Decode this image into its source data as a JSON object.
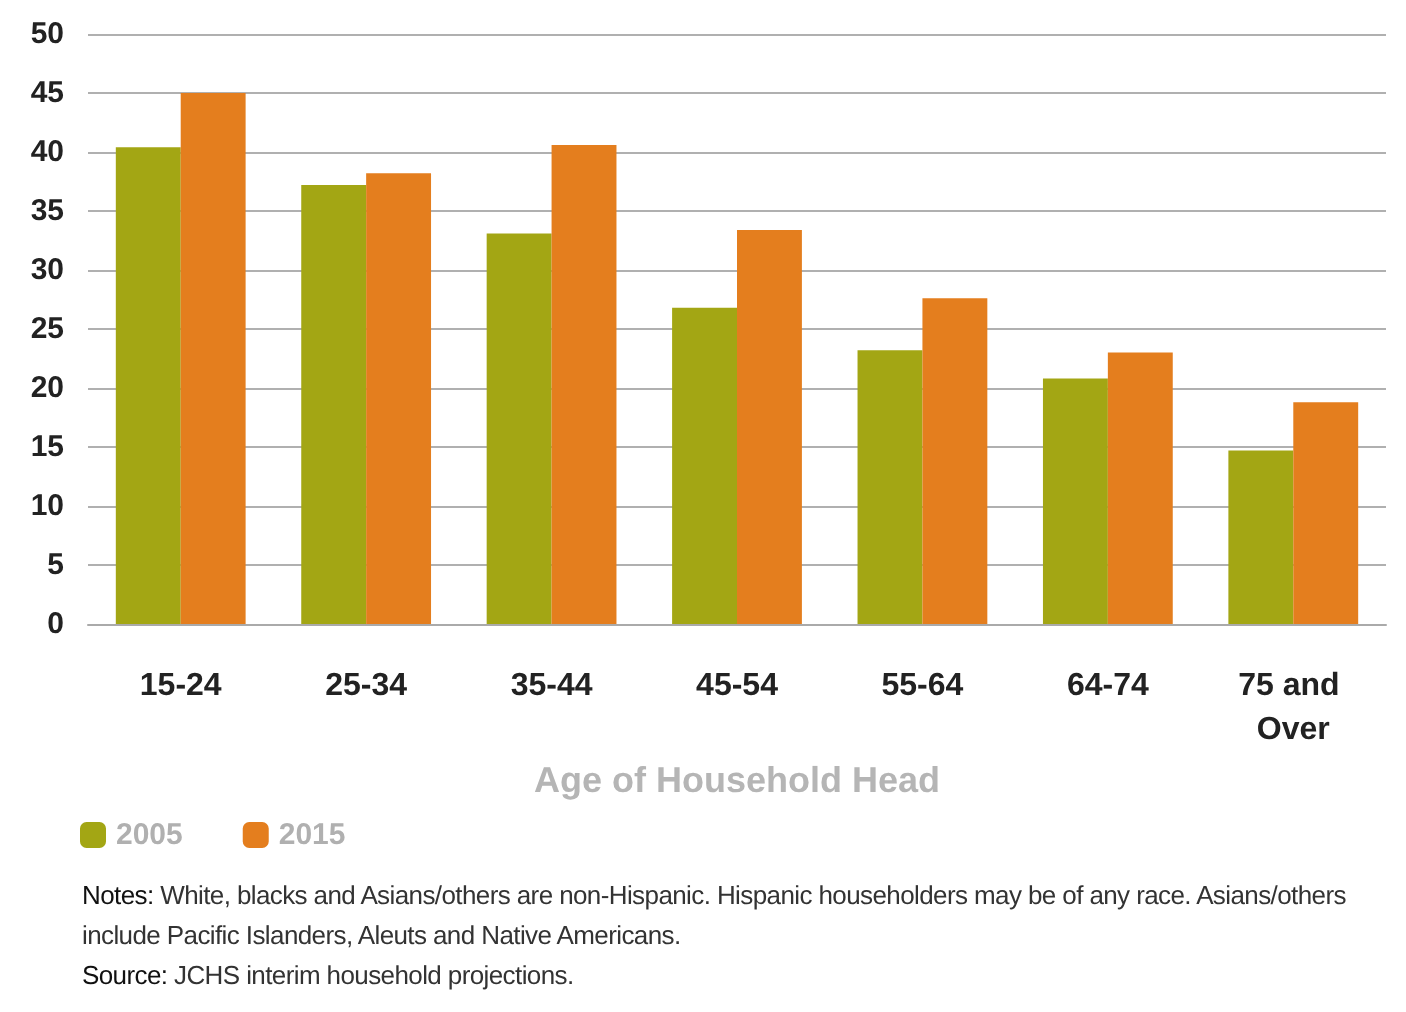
{
  "chart_data": {
    "type": "bar",
    "xlabel": "Age of Household Head",
    "categories": [
      "15-24",
      "25-34",
      "35-44",
      "45-54",
      "55-64",
      "64-74",
      "75 and Over"
    ],
    "series": [
      {
        "name": "2005",
        "color": "#a3a614",
        "values": [
          40.4,
          37.2,
          33.1,
          26.8,
          23.2,
          20.8,
          14.7
        ]
      },
      {
        "name": "2015",
        "color": "#e47e1e",
        "values": [
          45.0,
          38.2,
          40.6,
          33.4,
          27.6,
          23.0,
          18.8
        ]
      }
    ],
    "ylim": [
      0,
      50
    ],
    "yticks": [
      0,
      5,
      10,
      15,
      20,
      25,
      30,
      35,
      40,
      45,
      50
    ],
    "grid": "y",
    "legend": "bottom left",
    "annotations": [
      "Notes: White, blacks and Asians/others are non-Hispanic. Hispanic householders may be of any race. Asians/others include Pacific Islanders, Aleuts and Native Americans.",
      "Source: JCHS interim household projections."
    ]
  }
}
